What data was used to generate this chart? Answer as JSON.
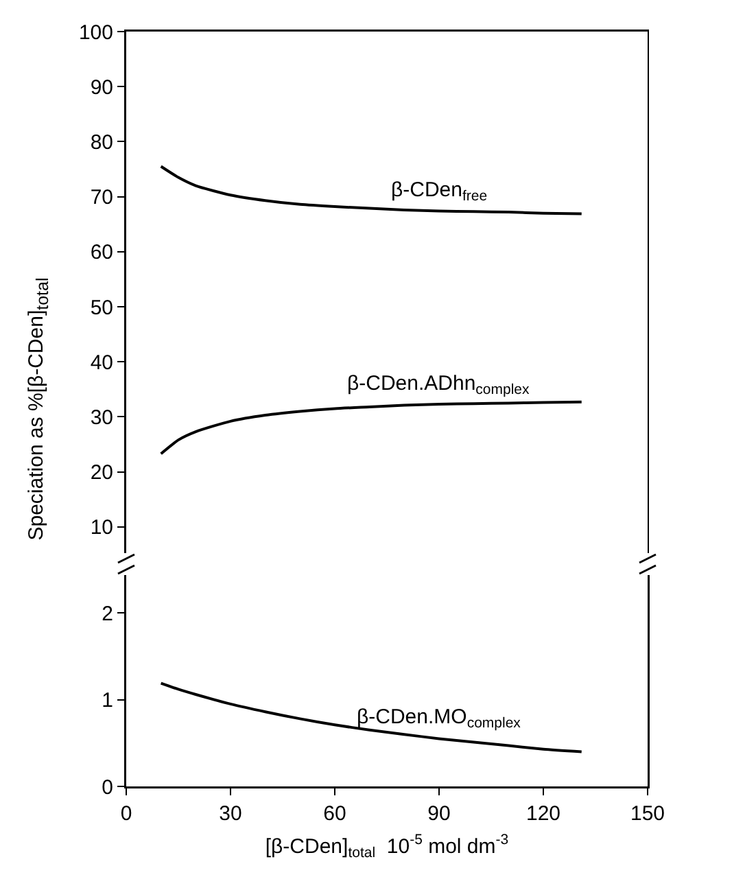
{
  "chart_data": [
    {
      "type": "line",
      "ylabel": "Speciation as %[β-CDen]$_{total}$",
      "xlim": [
        0,
        150
      ],
      "ylim": [
        4,
        100
      ],
      "yticks": [
        10,
        20,
        30,
        40,
        50,
        60,
        70,
        80,
        90,
        100
      ],
      "tick_labels": "y",
      "grid": false,
      "legend": false,
      "x": [
        10,
        15,
        20,
        30,
        40,
        50,
        60,
        70,
        80,
        90,
        100,
        110,
        120,
        131
      ],
      "series": [
        {
          "name": "β-CDen$_{free}$",
          "color": "#000000",
          "values": [
            75.5,
            73.5,
            72.0,
            70.3,
            69.3,
            68.6,
            68.2,
            67.9,
            67.6,
            67.4,
            67.3,
            67.2,
            67.0,
            66.9
          ]
        },
        {
          "name": "β-CDen.ADhn$_{complex}$",
          "color": "#000000",
          "values": [
            23.3,
            25.8,
            27.3,
            29.2,
            30.3,
            31.0,
            31.5,
            31.8,
            32.1,
            32.3,
            32.4,
            32.5,
            32.6,
            32.7
          ]
        }
      ]
    },
    {
      "type": "line",
      "xlabel": "[β-CDen]$_{total}$  10$^{-5}$ mol dm$^{-3}$",
      "xlim": [
        0,
        150
      ],
      "xticks": [
        0,
        30,
        60,
        90,
        120,
        150
      ],
      "ylim": [
        0,
        2.5
      ],
      "yticks": [
        0,
        1,
        2
      ],
      "grid": false,
      "legend": false,
      "x": [
        10,
        15,
        20,
        30,
        40,
        50,
        60,
        70,
        80,
        90,
        100,
        110,
        120,
        131
      ],
      "series": [
        {
          "name": "β-CDen.MO$_{complex}$",
          "color": "#000000",
          "values": [
            1.19,
            1.12,
            1.06,
            0.95,
            0.86,
            0.78,
            0.71,
            0.65,
            0.6,
            0.55,
            0.51,
            0.47,
            0.43,
            0.4
          ]
        }
      ]
    }
  ]
}
